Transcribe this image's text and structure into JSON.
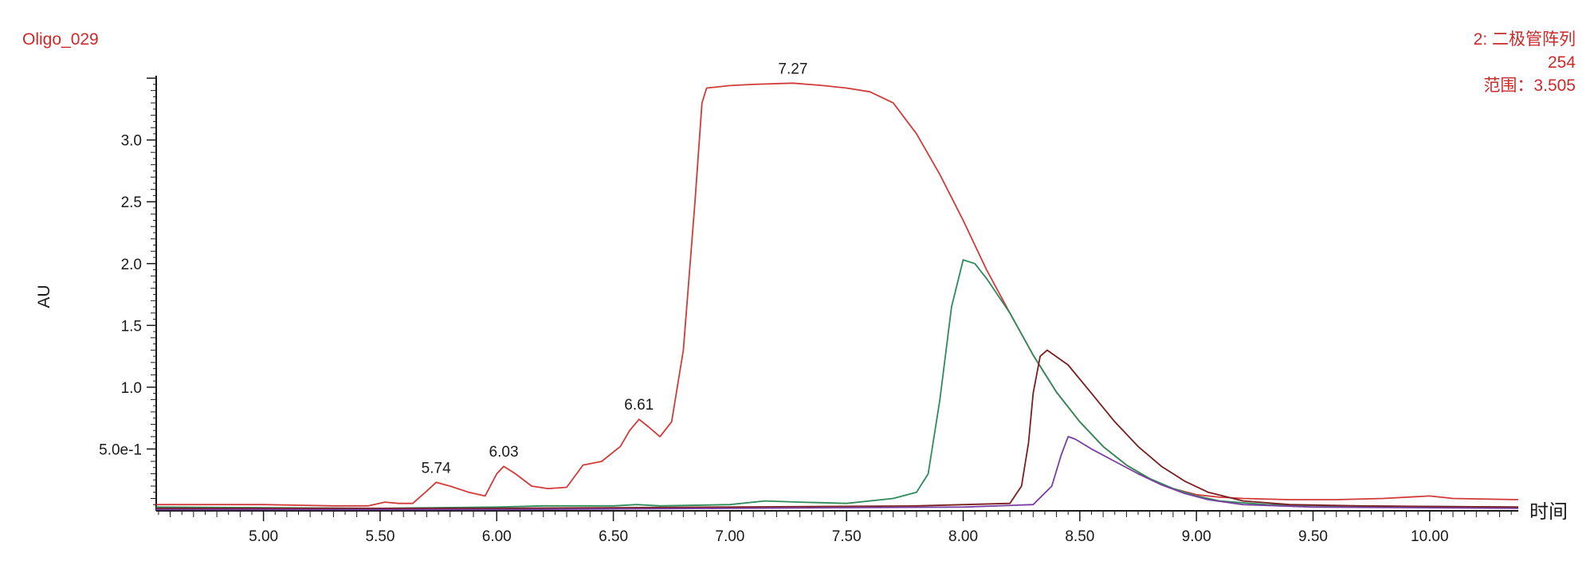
{
  "sample_name": "Oligo_029",
  "detector": {
    "line1": "2: 二极管阵列",
    "line2": "254",
    "line3": "范围：3.505"
  },
  "colors": {
    "header_text": "#cc2a2a",
    "axis": "#1a1a1a"
  },
  "chart_data": {
    "type": "line",
    "xlabel": "时间",
    "ylabel": "AU",
    "xlim": [
      4.54,
      10.38
    ],
    "ylim": [
      0,
      3.52
    ],
    "x_ticks": [
      5.0,
      5.5,
      6.0,
      6.5,
      7.0,
      7.5,
      8.0,
      8.5,
      9.0,
      9.5,
      10.0
    ],
    "x_tick_labels": [
      "5.00",
      "5.50",
      "6.00",
      "6.50",
      "7.00",
      "7.50",
      "8.00",
      "8.50",
      "9.00",
      "9.50",
      "10.00"
    ],
    "y_ticks": [
      0.5,
      1.0,
      1.5,
      2.0,
      2.5,
      3.0
    ],
    "y_tick_labels": [
      "5.0e-1",
      "1.0",
      "1.5",
      "2.0",
      "2.5",
      "3.0"
    ],
    "series": [
      {
        "color": "#d23a3a",
        "points": [
          [
            4.54,
            0.05
          ],
          [
            5.0,
            0.05
          ],
          [
            5.3,
            0.04
          ],
          [
            5.45,
            0.04
          ],
          [
            5.52,
            0.07
          ],
          [
            5.58,
            0.06
          ],
          [
            5.64,
            0.06
          ],
          [
            5.7,
            0.16
          ],
          [
            5.74,
            0.23
          ],
          [
            5.8,
            0.2
          ],
          [
            5.88,
            0.15
          ],
          [
            5.95,
            0.12
          ],
          [
            6.0,
            0.3
          ],
          [
            6.03,
            0.36
          ],
          [
            6.08,
            0.3
          ],
          [
            6.15,
            0.2
          ],
          [
            6.22,
            0.18
          ],
          [
            6.3,
            0.19
          ],
          [
            6.37,
            0.37
          ],
          [
            6.45,
            0.4
          ],
          [
            6.53,
            0.52
          ],
          [
            6.57,
            0.65
          ],
          [
            6.61,
            0.74
          ],
          [
            6.65,
            0.68
          ],
          [
            6.7,
            0.6
          ],
          [
            6.75,
            0.72
          ],
          [
            6.8,
            1.3
          ],
          [
            6.85,
            2.5
          ],
          [
            6.88,
            3.3
          ],
          [
            6.9,
            3.42
          ],
          [
            7.0,
            3.44
          ],
          [
            7.1,
            3.45
          ],
          [
            7.27,
            3.46
          ],
          [
            7.4,
            3.44
          ],
          [
            7.5,
            3.42
          ],
          [
            7.6,
            3.39
          ],
          [
            7.7,
            3.3
          ],
          [
            7.8,
            3.05
          ],
          [
            7.9,
            2.72
          ],
          [
            8.0,
            2.35
          ],
          [
            8.1,
            1.95
          ],
          [
            8.2,
            1.6
          ],
          [
            8.3,
            1.26
          ],
          [
            8.4,
            0.96
          ],
          [
            8.5,
            0.72
          ],
          [
            8.6,
            0.52
          ],
          [
            8.7,
            0.37
          ],
          [
            8.8,
            0.26
          ],
          [
            8.9,
            0.18
          ],
          [
            9.0,
            0.13
          ],
          [
            9.1,
            0.11
          ],
          [
            9.2,
            0.1
          ],
          [
            9.4,
            0.09
          ],
          [
            9.6,
            0.09
          ],
          [
            9.8,
            0.1
          ],
          [
            10.0,
            0.12
          ],
          [
            10.1,
            0.1
          ],
          [
            10.38,
            0.09
          ]
        ]
      },
      {
        "color": "#2e8b5a",
        "points": [
          [
            4.54,
            0.03
          ],
          [
            5.5,
            0.02
          ],
          [
            6.0,
            0.03
          ],
          [
            6.2,
            0.04
          ],
          [
            6.5,
            0.04
          ],
          [
            6.6,
            0.05
          ],
          [
            6.7,
            0.04
          ],
          [
            7.0,
            0.05
          ],
          [
            7.15,
            0.08
          ],
          [
            7.3,
            0.07
          ],
          [
            7.5,
            0.06
          ],
          [
            7.7,
            0.1
          ],
          [
            7.8,
            0.15
          ],
          [
            7.85,
            0.3
          ],
          [
            7.9,
            0.9
          ],
          [
            7.95,
            1.65
          ],
          [
            8.0,
            2.03
          ],
          [
            8.05,
            2.0
          ],
          [
            8.1,
            1.88
          ],
          [
            8.2,
            1.6
          ],
          [
            8.3,
            1.26
          ],
          [
            8.4,
            0.96
          ],
          [
            8.5,
            0.72
          ],
          [
            8.6,
            0.52
          ],
          [
            8.7,
            0.37
          ],
          [
            8.8,
            0.26
          ],
          [
            8.9,
            0.18
          ],
          [
            9.0,
            0.12
          ],
          [
            9.1,
            0.08
          ],
          [
            9.3,
            0.05
          ],
          [
            9.6,
            0.04
          ],
          [
            10.38,
            0.03
          ]
        ]
      },
      {
        "color": "#7a1f1f",
        "points": [
          [
            4.54,
            0.02
          ],
          [
            6.0,
            0.02
          ],
          [
            7.0,
            0.03
          ],
          [
            7.8,
            0.04
          ],
          [
            8.2,
            0.06
          ],
          [
            8.25,
            0.2
          ],
          [
            8.28,
            0.55
          ],
          [
            8.3,
            0.95
          ],
          [
            8.33,
            1.25
          ],
          [
            8.36,
            1.3
          ],
          [
            8.45,
            1.18
          ],
          [
            8.55,
            0.95
          ],
          [
            8.65,
            0.72
          ],
          [
            8.75,
            0.52
          ],
          [
            8.85,
            0.36
          ],
          [
            8.95,
            0.24
          ],
          [
            9.05,
            0.15
          ],
          [
            9.2,
            0.08
          ],
          [
            9.4,
            0.05
          ],
          [
            9.7,
            0.04
          ],
          [
            10.38,
            0.03
          ]
        ]
      },
      {
        "color": "#7a3fa3",
        "points": [
          [
            4.54,
            0.01
          ],
          [
            6.0,
            0.01
          ],
          [
            7.0,
            0.02
          ],
          [
            8.0,
            0.03
          ],
          [
            8.3,
            0.05
          ],
          [
            8.38,
            0.2
          ],
          [
            8.42,
            0.45
          ],
          [
            8.45,
            0.6
          ],
          [
            8.48,
            0.58
          ],
          [
            8.55,
            0.5
          ],
          [
            8.65,
            0.4
          ],
          [
            8.75,
            0.3
          ],
          [
            8.85,
            0.21
          ],
          [
            8.95,
            0.14
          ],
          [
            9.05,
            0.09
          ],
          [
            9.2,
            0.05
          ],
          [
            9.5,
            0.03
          ],
          [
            10.38,
            0.02
          ]
        ]
      }
    ],
    "peak_labels": [
      {
        "x": 5.74,
        "y": 0.23,
        "label": "5.74"
      },
      {
        "x": 6.03,
        "y": 0.36,
        "label": "6.03"
      },
      {
        "x": 6.61,
        "y": 0.74,
        "label": "6.61"
      },
      {
        "x": 7.27,
        "y": 3.46,
        "label": "7.27"
      }
    ]
  }
}
